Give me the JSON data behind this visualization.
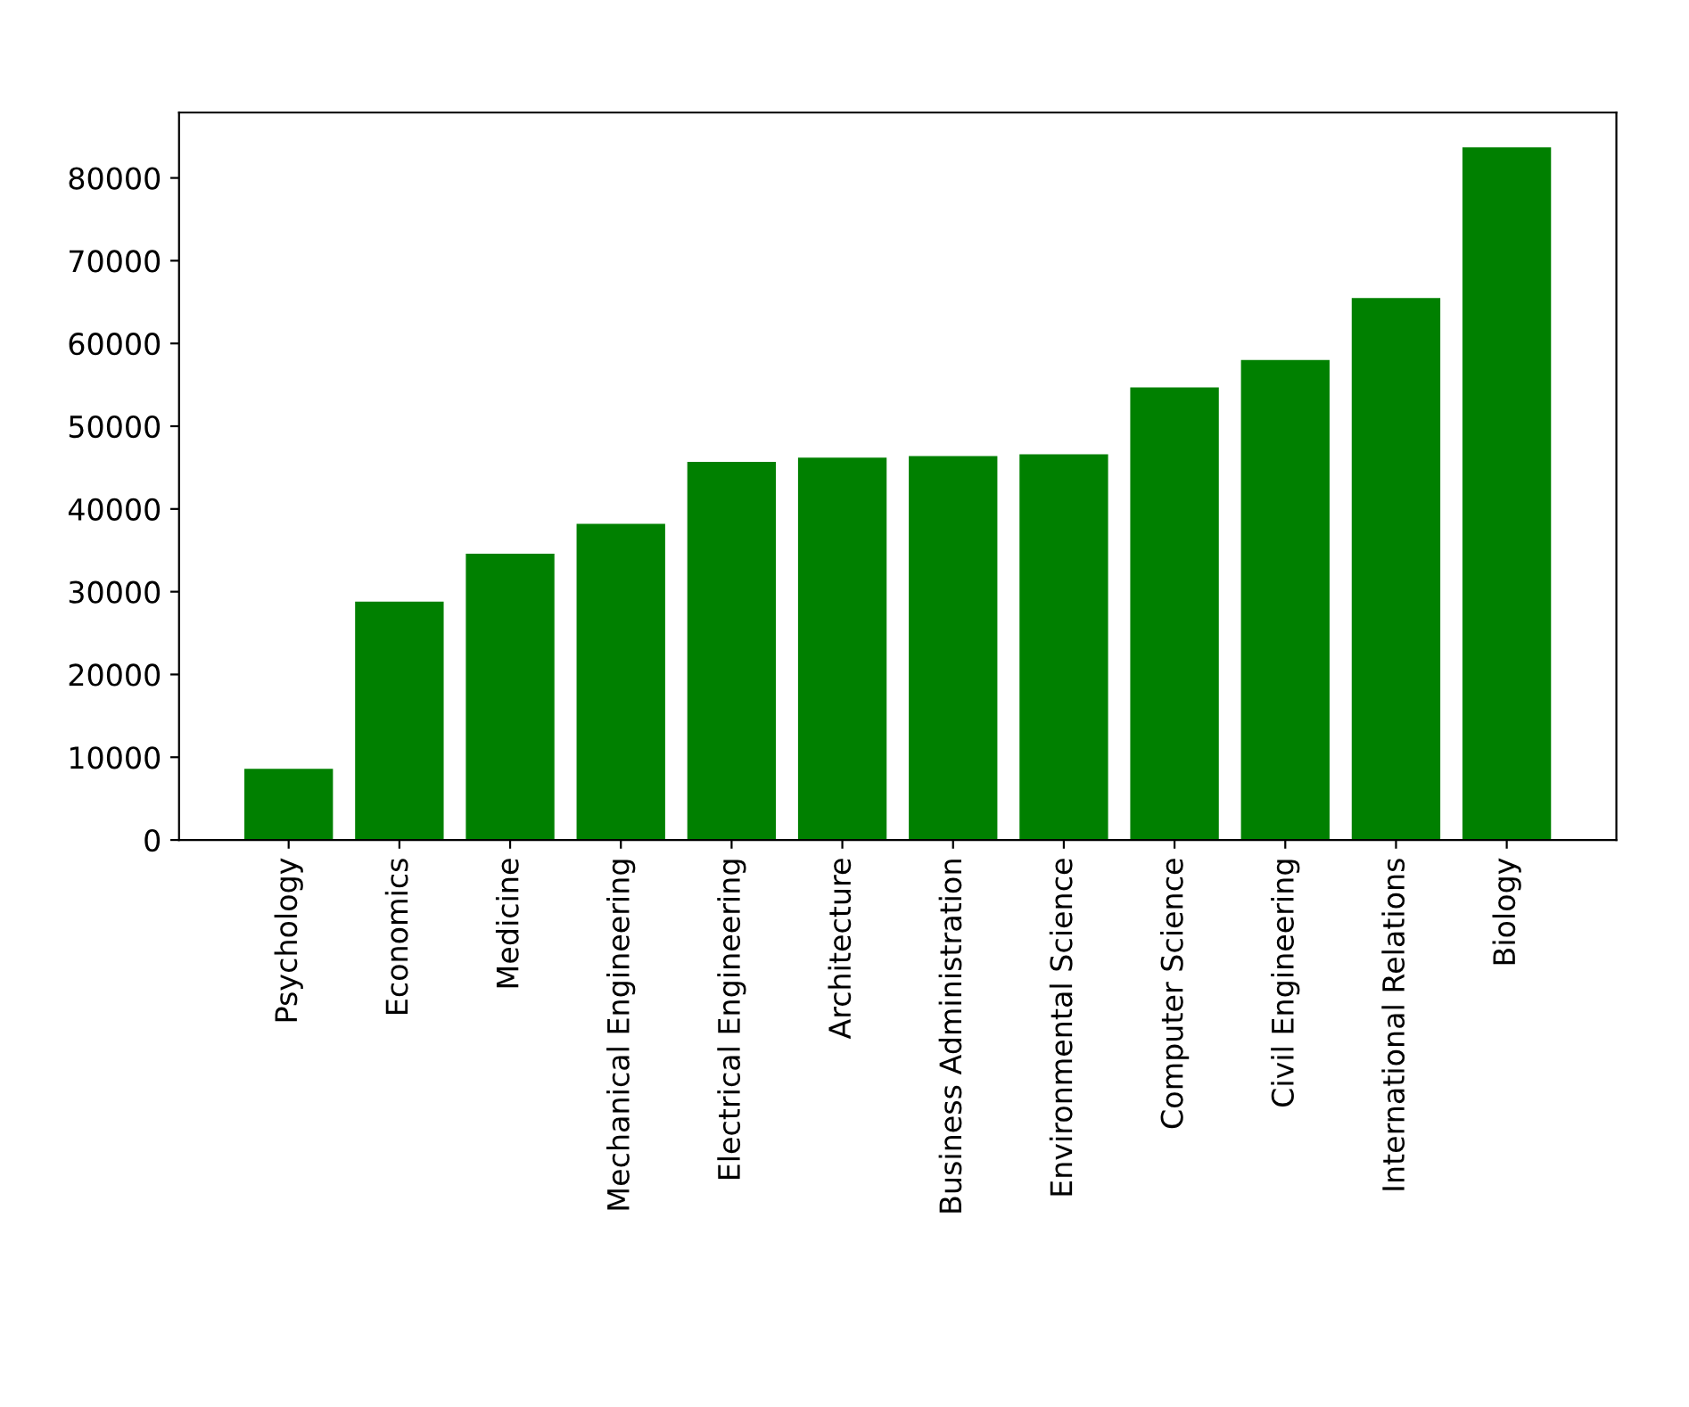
{
  "chart_data": {
    "type": "bar",
    "categories": [
      "Psychology",
      "Economics",
      "Medicine",
      "Mechanical Engineering",
      "Electrical Engineering",
      "Architecture",
      "Business Administration",
      "Environmental Science",
      "Computer Science",
      "Civil Engineering",
      "International Relations",
      "Biology"
    ],
    "values": [
      8600,
      28800,
      34600,
      38200,
      45700,
      46200,
      46400,
      46600,
      54700,
      58000,
      65500,
      83700
    ],
    "color": "#008000",
    "ylim": [
      0,
      87900
    ],
    "yticks": [
      0,
      10000,
      20000,
      30000,
      40000,
      50000,
      60000,
      70000,
      80000
    ],
    "grid": false
  }
}
